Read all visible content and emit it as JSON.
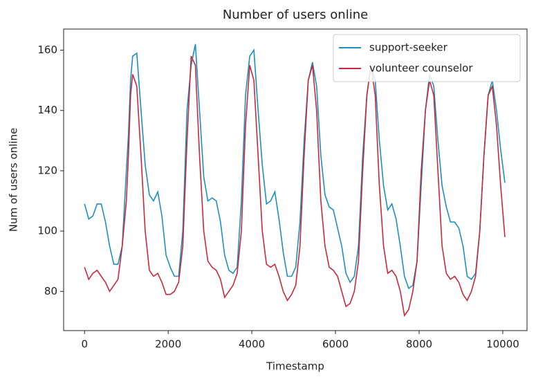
{
  "chart_data": {
    "type": "line",
    "title": "Number of users online",
    "xlabel": "Timestamp",
    "ylabel": "Num of users online",
    "x": [
      0,
      100,
      200,
      300,
      400,
      500,
      600,
      700,
      800,
      900,
      1000,
      1050,
      1100,
      1150,
      1250,
      1350,
      1450,
      1550,
      1650,
      1750,
      1850,
      1950,
      2050,
      2150,
      2250,
      2350,
      2450,
      2550,
      2650,
      2750,
      2850,
      2950,
      3050,
      3150,
      3250,
      3350,
      3450,
      3550,
      3650,
      3750,
      3850,
      3950,
      4050,
      4150,
      4250,
      4350,
      4450,
      4550,
      4650,
      4750,
      4850,
      4950,
      5050,
      5150,
      5250,
      5350,
      5450,
      5550,
      5650,
      5750,
      5850,
      5950,
      6050,
      6150,
      6250,
      6350,
      6450,
      6550,
      6650,
      6750,
      6850,
      6950,
      7050,
      7150,
      7250,
      7350,
      7450,
      7550,
      7650,
      7750,
      7850,
      7950,
      8050,
      8150,
      8250,
      8350,
      8450,
      8550,
      8650,
      8750,
      8850,
      8950,
      9050,
      9150,
      9250,
      9350,
      9450,
      9550,
      9650,
      9750,
      9850,
      9950,
      10050
    ],
    "series": [
      {
        "name": "support-seeker",
        "color": "#1a8fc0",
        "values": [
          109,
          104,
          105,
          109,
          109,
          103,
          95,
          89,
          89,
          95,
          120,
          132,
          150,
          158,
          159,
          140,
          122,
          112,
          110,
          113,
          105,
          92,
          88,
          85,
          85,
          100,
          140,
          155,
          162,
          140,
          118,
          110,
          111,
          110,
          103,
          92,
          87,
          86,
          88,
          110,
          145,
          158,
          160,
          140,
          122,
          109,
          110,
          113,
          104,
          93,
          85,
          85,
          88,
          103,
          130,
          150,
          156,
          148,
          125,
          112,
          108,
          107,
          101,
          95,
          86,
          83,
          85,
          95,
          125,
          145,
          155,
          150,
          130,
          115,
          107,
          109,
          104,
          95,
          85,
          81,
          82,
          90,
          115,
          140,
          152,
          148,
          130,
          115,
          108,
          103,
          103,
          101,
          95,
          85,
          84,
          86,
          100,
          125,
          145,
          150,
          140,
          127,
          116
        ]
      },
      {
        "name": "volunteer counselor",
        "color": "#c8283a",
        "values": [
          88,
          84,
          86,
          87,
          85,
          83,
          80,
          82,
          84,
          95,
          110,
          125,
          145,
          152,
          148,
          125,
          100,
          87,
          85,
          86,
          83,
          79,
          79,
          80,
          83,
          95,
          130,
          158,
          155,
          125,
          100,
          90,
          88,
          87,
          84,
          78,
          80,
          82,
          86,
          100,
          135,
          155,
          150,
          125,
          100,
          89,
          88,
          89,
          85,
          80,
          77,
          79,
          82,
          95,
          125,
          150,
          155,
          140,
          110,
          95,
          88,
          87,
          85,
          80,
          75,
          76,
          80,
          90,
          120,
          145,
          155,
          145,
          115,
          95,
          86,
          87,
          85,
          80,
          72,
          74,
          80,
          90,
          120,
          140,
          150,
          145,
          120,
          95,
          86,
          84,
          85,
          83,
          79,
          77,
          80,
          85,
          100,
          125,
          145,
          148,
          135,
          115,
          98
        ]
      }
    ],
    "xlim": [
      -500,
      10580
    ],
    "ylim": [
      67,
      167
    ],
    "xticks": [
      0,
      2000,
      4000,
      6000,
      8000,
      10000
    ],
    "yticks": [
      80,
      100,
      120,
      140,
      160
    ],
    "legend": "upper right"
  }
}
